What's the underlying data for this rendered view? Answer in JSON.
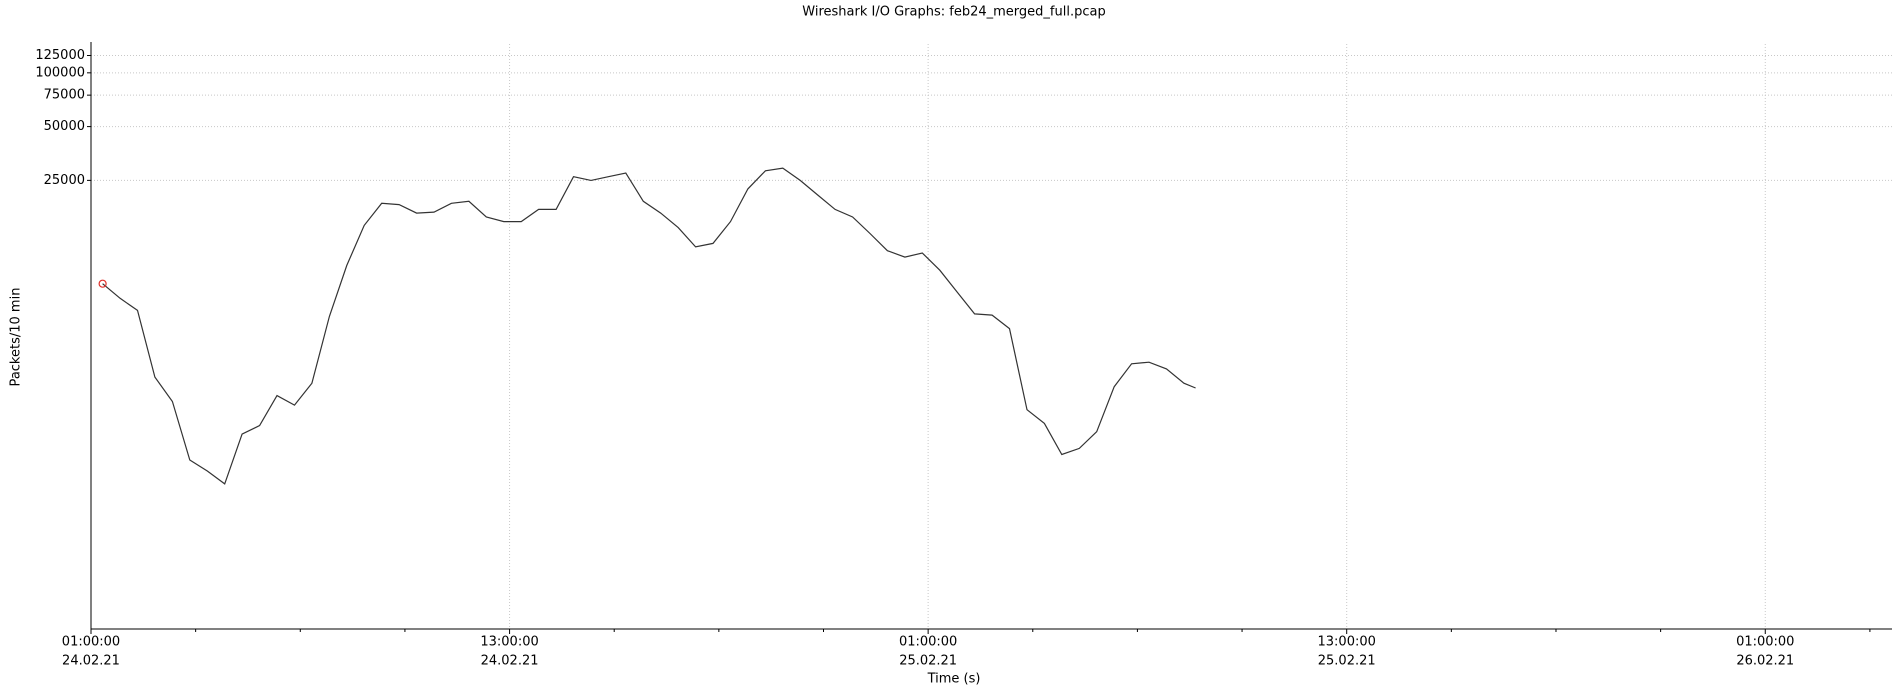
{
  "chart_data": {
    "type": "line",
    "title": "Wireshark I/O Graphs: feb24_merged_full.pcap",
    "x_label": "Time (s)",
    "y_label": "Packets/10 min",
    "log_y": true,
    "grid": true,
    "xlim": [
      "2021-02-24T01:00",
      "2021-02-26T04:38"
    ],
    "xticks": [
      {
        "value": "2021-02-24T01:00",
        "label": [
          "01:00:00",
          "24.02.21"
        ]
      },
      {
        "value": "2021-02-24T13:00",
        "label": [
          "13:00:00",
          "24.02.21"
        ]
      },
      {
        "value": "2021-02-25T01:00",
        "label": [
          "01:00:00",
          "25.02.21"
        ]
      },
      {
        "value": "2021-02-25T13:00",
        "label": [
          "13:00:00",
          "25.02.21"
        ]
      },
      {
        "value": "2021-02-26T01:00",
        "label": [
          "01:00:00",
          "26.02.21"
        ]
      }
    ],
    "xminorticks": [
      "2021-02-24T04:00",
      "2021-02-24T07:00",
      "2021-02-24T10:00",
      "2021-02-24T16:00",
      "2021-02-24T19:00",
      "2021-02-24T22:00",
      "2021-02-25T04:00",
      "2021-02-25T07:00",
      "2021-02-25T10:00",
      "2021-02-25T16:00",
      "2021-02-25T19:00",
      "2021-02-25T22:00",
      "2021-02-26T04:00"
    ],
    "ylim": [
      77,
      145000
    ],
    "yticks": [
      25000,
      50000,
      75000,
      100000,
      125000
    ],
    "x": [
      "2021-02-24T01:20",
      "2021-02-24T01:50",
      "2021-02-24T02:20",
      "2021-02-24T02:50",
      "2021-02-24T03:20",
      "2021-02-24T03:50",
      "2021-02-24T04:20",
      "2021-02-24T04:50",
      "2021-02-24T05:20",
      "2021-02-24T05:50",
      "2021-02-24T06:20",
      "2021-02-24T06:50",
      "2021-02-24T07:20",
      "2021-02-24T07:50",
      "2021-02-24T08:20",
      "2021-02-24T08:50",
      "2021-02-24T09:20",
      "2021-02-24T09:50",
      "2021-02-24T10:20",
      "2021-02-24T10:50",
      "2021-02-24T11:20",
      "2021-02-24T11:50",
      "2021-02-24T12:20",
      "2021-02-24T12:50",
      "2021-02-24T13:20",
      "2021-02-24T13:50",
      "2021-02-24T14:20",
      "2021-02-24T14:50",
      "2021-02-24T15:20",
      "2021-02-24T15:50",
      "2021-02-24T16:20",
      "2021-02-24T16:50",
      "2021-02-24T17:20",
      "2021-02-24T17:50",
      "2021-02-24T18:20",
      "2021-02-24T18:50",
      "2021-02-24T19:20",
      "2021-02-24T19:50",
      "2021-02-24T20:20",
      "2021-02-24T20:50",
      "2021-02-24T21:20",
      "2021-02-24T21:50",
      "2021-02-24T22:20",
      "2021-02-24T22:50",
      "2021-02-24T23:20",
      "2021-02-24T23:50",
      "2021-02-25T00:20",
      "2021-02-25T00:50",
      "2021-02-25T01:20",
      "2021-02-25T01:50",
      "2021-02-25T02:20",
      "2021-02-25T02:50",
      "2021-02-25T03:20",
      "2021-02-25T03:50",
      "2021-02-25T04:20",
      "2021-02-25T04:50",
      "2021-02-25T05:20",
      "2021-02-25T05:50",
      "2021-02-25T06:20",
      "2021-02-25T06:50",
      "2021-02-25T07:20",
      "2021-02-25T07:50",
      "2021-02-25T08:20",
      "2021-02-25T08:40"
    ],
    "series": [
      {
        "color": "#333333",
        "marker_color": "#e0302a",
        "values": [
          6600,
          5470,
          4680,
          1980,
          1445,
          680,
          590,
          500,
          950,
          1060,
          1560,
          1380,
          1830,
          4330,
          8360,
          14000,
          18600,
          18300,
          16400,
          16600,
          18600,
          19100,
          15600,
          14700,
          14700,
          17200,
          17200,
          26200,
          25000,
          26200,
          27500,
          19100,
          16400,
          13600,
          10600,
          11100,
          14700,
          22400,
          28300,
          29300,
          25000,
          20700,
          17200,
          15600,
          12600,
          10100,
          9300,
          9800,
          7850,
          5920,
          4470,
          4400,
          3700,
          1300,
          1090,
          730,
          790,
          980,
          1750,
          2350,
          2400,
          2200,
          1830,
          1720
        ]
      }
    ]
  }
}
